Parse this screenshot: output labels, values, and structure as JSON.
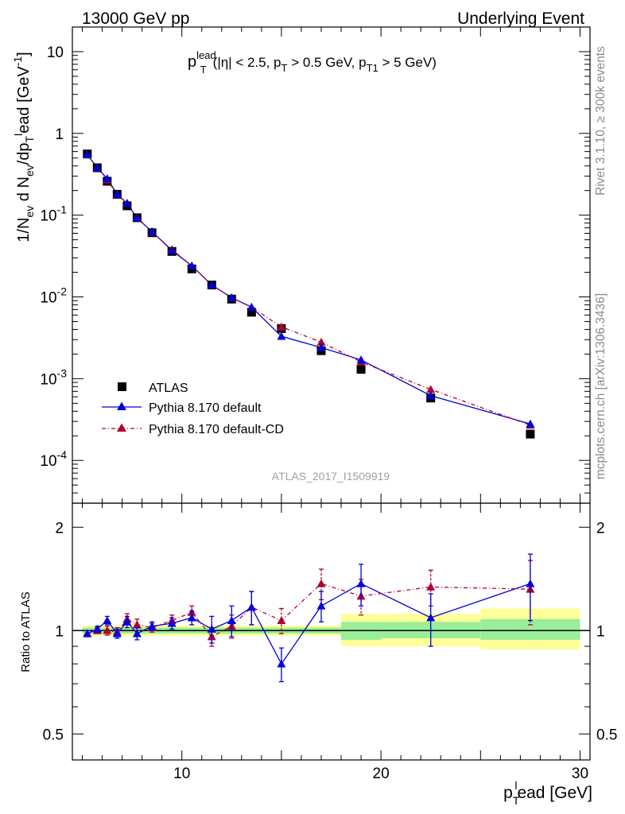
{
  "header": {
    "left": "13000 GeV pp",
    "right": "Underlying Event"
  },
  "side_text": {
    "rivet": "Rivet 3.1.10, ≥ 300k events",
    "mcplots": "mcplots.cern.ch [arXiv:1306.3436]"
  },
  "analysis_id": "ATLAS_2017_I1509919",
  "chart_data": [
    {
      "type": "scatter",
      "title": "p_T^lead (|η| < 2.5, p_T > 0.5 GeV, p_T1 > 5 GeV)",
      "title_parts": {
        "p": "p",
        "sup": "lead",
        "sub1": "T",
        "mid": "(|η| < 2.5, p",
        "sub2": "T",
        "mid2": " > 0.5 GeV, p",
        "sub3": "T1",
        "end": " > 5 GeV)"
      },
      "xlabel": "p_T^lead [GeV]",
      "xlabel_parts": {
        "p": "p",
        "sub": "T",
        "sup": "l",
        "rest": "ead [GeV]"
      },
      "ylabel": "1/N_ev d N_ev/dp_T^lead [GeV^-1]",
      "ylabel_parts": {
        "a": "1/N",
        "b": "ev",
        "c": " d N",
        "d": "ev",
        "e": "/dp",
        "f": "T",
        "g": "l",
        "h": "ead [GeV",
        "i": "-1",
        "j": "]"
      },
      "xlim": [
        4.5,
        30.5
      ],
      "ylim": [
        3e-05,
        20
      ],
      "yscale": "log",
      "x_ticks": [
        10,
        20,
        30
      ],
      "y_ticks": [
        {
          "value": 0.0001,
          "base": "10",
          "exp": "-4"
        },
        {
          "value": 0.001,
          "base": "10",
          "exp": "-3"
        },
        {
          "value": 0.01,
          "base": "10",
          "exp": "-2"
        },
        {
          "value": 0.1,
          "base": "10",
          "exp": "-1"
        },
        {
          "value": 1,
          "base": "1",
          "exp": ""
        },
        {
          "value": 10,
          "base": "10",
          "exp": ""
        }
      ],
      "legend_position": "bottom-left",
      "x": [
        5.25,
        5.75,
        6.25,
        6.75,
        7.25,
        7.75,
        8.5,
        9.5,
        10.5,
        11.5,
        12.5,
        13.5,
        15,
        17,
        19,
        22.5,
        27.5
      ],
      "series": [
        {
          "name": "ATLAS",
          "color": "#000000",
          "marker": "square",
          "values": [
            0.56,
            0.38,
            0.26,
            0.18,
            0.13,
            0.093,
            0.061,
            0.036,
            0.022,
            0.014,
            0.0094,
            0.0065,
            0.0041,
            0.0022,
            0.0013,
            0.00058,
            0.00021
          ]
        },
        {
          "name": "Pythia 8.170 default",
          "color": "#0000dd",
          "marker": "triangle",
          "line": "solid",
          "values": [
            0.55,
            0.38,
            0.28,
            0.18,
            0.14,
            0.092,
            0.063,
            0.037,
            0.024,
            0.014,
            0.0098,
            0.0075,
            0.0033,
            0.0024,
            0.0017,
            0.00062,
            0.00028
          ]
        },
        {
          "name": "Pythia 8.170 default-CD",
          "color": "#b00030",
          "marker": "triangle",
          "line": "dashdot",
          "values": [
            0.55,
            0.38,
            0.27,
            0.18,
            0.14,
            0.094,
            0.062,
            0.038,
            0.024,
            0.014,
            0.0098,
            0.0075,
            0.0043,
            0.0028,
            0.0016,
            0.00074,
            0.00027
          ]
        }
      ]
    },
    {
      "type": "scatter",
      "ylabel": "Ratio to ATLAS",
      "xlim": [
        4.5,
        30.5
      ],
      "ylim": [
        0.42,
        2.35
      ],
      "yscale": "log",
      "y_ticks": [
        {
          "value": 0.5,
          "label": "0.5"
        },
        {
          "value": 1,
          "label": "1"
        },
        {
          "value": 2,
          "label": "2"
        }
      ],
      "x": [
        5.25,
        5.75,
        6.25,
        6.75,
        7.25,
        7.75,
        8.5,
        9.5,
        10.5,
        11.5,
        12.5,
        13.5,
        15,
        17,
        19,
        22.5,
        27.5
      ],
      "data_bands": [
        {
          "x_from": 5.0,
          "x_to": 18.0,
          "green": [
            0.98,
            1.02
          ],
          "yellow": [
            0.965,
            1.035
          ]
        },
        {
          "x_from": 18.0,
          "x_to": 20.0,
          "green": [
            0.94,
            1.06
          ],
          "yellow": [
            0.9,
            1.12
          ]
        },
        {
          "x_from": 20.0,
          "x_to": 25.0,
          "green": [
            0.95,
            1.06
          ],
          "yellow": [
            0.9,
            1.12
          ]
        },
        {
          "x_from": 25.0,
          "x_to": 30.0,
          "green": [
            0.94,
            1.08
          ],
          "yellow": [
            0.88,
            1.16
          ]
        }
      ],
      "series": [
        {
          "name": "Pythia 8.170 default",
          "color": "#0000dd",
          "values": [
            0.98,
            1.01,
            1.07,
            0.98,
            1.06,
            0.98,
            1.03,
            1.05,
            1.09,
            1.01,
            1.07,
            1.17,
            0.8,
            1.18,
            1.37,
            1.09,
            1.37
          ],
          "err": [
            0.02,
            0.02,
            0.03,
            0.03,
            0.04,
            0.04,
            0.03,
            0.04,
            0.05,
            0.09,
            0.11,
            0.13,
            0.09,
            0.12,
            0.19,
            0.19,
            0.3
          ]
        },
        {
          "name": "Pythia 8.170 default-CD",
          "color": "#b00030",
          "values": [
            0.98,
            1.0,
            1.0,
            0.99,
            1.08,
            1.04,
            1.02,
            1.07,
            1.13,
            0.96,
            1.03,
            1.17,
            1.07,
            1.37,
            1.26,
            1.34,
            1.32
          ],
          "err": [
            0.02,
            0.02,
            0.03,
            0.03,
            0.04,
            0.04,
            0.03,
            0.04,
            0.05,
            0.06,
            0.08,
            0.13,
            0.09,
            0.14,
            0.15,
            0.16,
            0.28
          ]
        }
      ]
    }
  ]
}
